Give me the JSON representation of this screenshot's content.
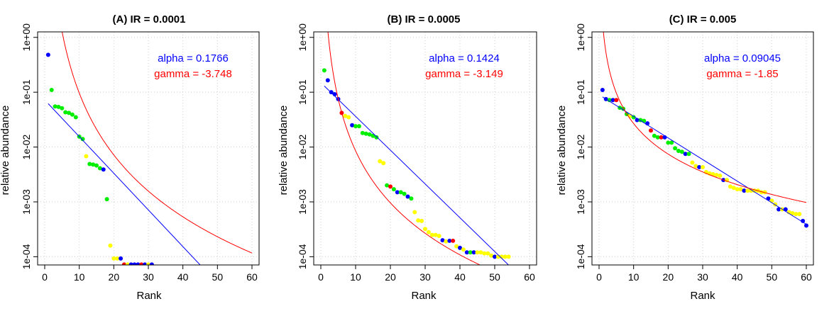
{
  "colors": {
    "green": "#00ee00",
    "blue": "#0000ff",
    "red": "#ff0000",
    "yellow": "#ffff00",
    "fit_blue": "#0000ff",
    "fit_red": "#ff0000",
    "grid": "#cfcfcf"
  },
  "chart_data": [
    {
      "type": "scatter",
      "title": "(A) IR = 0.0001",
      "xlabel": "Rank",
      "ylabel": "relative abundance",
      "xlim": [
        0,
        60
      ],
      "ylim_log10": [
        -4.15,
        0.1
      ],
      "x_ticks": [
        0,
        10,
        20,
        30,
        40,
        50,
        60
      ],
      "y_ticks": [
        {
          "value": 1,
          "label": "1e+00"
        },
        {
          "value": 0.1,
          "label": "1e-01"
        },
        {
          "value": 0.01,
          "label": "1e-02"
        },
        {
          "value": 0.001,
          "label": "1e-03"
        },
        {
          "value": 0.0001,
          "label": "1e-04"
        }
      ],
      "grid": true,
      "annotations": [
        {
          "text": "alpha = 0.1766",
          "color": "blue"
        },
        {
          "text": "gamma = -3.748",
          "color": "red"
        }
      ],
      "fits": [
        {
          "kind": "loglinear",
          "color": "fit_blue",
          "points": [
            [
              1,
              0.062
            ],
            [
              45,
              7.08e-05
            ]
          ]
        },
        {
          "kind": "powerlaw",
          "color": "fit_red",
          "c": 540,
          "gamma": -3.748,
          "x_from": 1,
          "x_to": 60
        }
      ],
      "points": [
        {
          "x": 1,
          "y": 0.48,
          "c": "blue"
        },
        {
          "x": 2,
          "y": 0.11,
          "c": "green"
        },
        {
          "x": 3,
          "y": 0.055,
          "c": "green"
        },
        {
          "x": 4,
          "y": 0.054,
          "c": "green"
        },
        {
          "x": 5,
          "y": 0.051,
          "c": "green"
        },
        {
          "x": 6,
          "y": 0.043,
          "c": "green"
        },
        {
          "x": 7,
          "y": 0.042,
          "c": "green"
        },
        {
          "x": 8,
          "y": 0.039,
          "c": "green"
        },
        {
          "x": 9,
          "y": 0.035,
          "c": "green"
        },
        {
          "x": 10,
          "y": 0.0155,
          "c": "green"
        },
        {
          "x": 11,
          "y": 0.014,
          "c": "green"
        },
        {
          "x": 12,
          "y": 0.0068,
          "c": "yellow"
        },
        {
          "x": 13,
          "y": 0.0049,
          "c": "green"
        },
        {
          "x": 14,
          "y": 0.0048,
          "c": "green"
        },
        {
          "x": 15,
          "y": 0.0046,
          "c": "green"
        },
        {
          "x": 16,
          "y": 0.0041,
          "c": "green"
        },
        {
          "x": 17,
          "y": 0.0039,
          "c": "blue"
        },
        {
          "x": 18,
          "y": 0.00112,
          "c": "green"
        },
        {
          "x": 19,
          "y": 0.00016,
          "c": "yellow"
        },
        {
          "x": 20,
          "y": 9.3e-05,
          "c": "yellow"
        },
        {
          "x": 21,
          "y": 9.3e-05,
          "c": "yellow"
        },
        {
          "x": 22,
          "y": 9.3e-05,
          "c": "blue"
        },
        {
          "x": 23,
          "y": 7.2e-05,
          "c": "red"
        },
        {
          "x": 24,
          "y": 7.2e-05,
          "c": "yellow"
        },
        {
          "x": 25,
          "y": 7.2e-05,
          "c": "blue"
        },
        {
          "x": 26,
          "y": 7.2e-05,
          "c": "blue"
        },
        {
          "x": 27,
          "y": 7.2e-05,
          "c": "blue"
        },
        {
          "x": 28,
          "y": 7.2e-05,
          "c": "red"
        },
        {
          "x": 29,
          "y": 7.2e-05,
          "c": "blue"
        },
        {
          "x": 30,
          "y": 7.2e-05,
          "c": "yellow"
        },
        {
          "x": 31,
          "y": 7.2e-05,
          "c": "blue"
        }
      ]
    },
    {
      "type": "scatter",
      "title": "(B) IR = 0.0005",
      "xlabel": "Rank",
      "ylabel": "relative abundance",
      "xlim": [
        0,
        60
      ],
      "ylim_log10": [
        -4.15,
        0.1
      ],
      "x_ticks": [
        0,
        10,
        20,
        30,
        40,
        50,
        60
      ],
      "y_ticks": [
        {
          "value": 1,
          "label": "1e+00"
        },
        {
          "value": 0.1,
          "label": "1e-01"
        },
        {
          "value": 0.01,
          "label": "1e-02"
        },
        {
          "value": 0.001,
          "label": "1e-03"
        },
        {
          "value": 0.0001,
          "label": "1e-04"
        }
      ],
      "grid": true,
      "annotations": [
        {
          "text": "alpha = 0.1424",
          "color": "blue"
        },
        {
          "text": "gamma = -3.149",
          "color": "red"
        }
      ],
      "fits": [
        {
          "kind": "loglinear",
          "color": "fit_blue",
          "points": [
            [
              1,
              0.13
            ],
            [
              57,
              4.6e-05
            ]
          ]
        },
        {
          "kind": "powerlaw",
          "color": "fit_red",
          "c": 12,
          "gamma": -3.149,
          "x_from": 1,
          "x_to": 60
        }
      ],
      "points": [
        {
          "x": 1,
          "y": 0.25,
          "c": "green"
        },
        {
          "x": 2,
          "y": 0.165,
          "c": "blue"
        },
        {
          "x": 3,
          "y": 0.1,
          "c": "blue"
        },
        {
          "x": 4,
          "y": 0.092,
          "c": "blue"
        },
        {
          "x": 5,
          "y": 0.075,
          "c": "blue"
        },
        {
          "x": 6,
          "y": 0.042,
          "c": "red"
        },
        {
          "x": 7,
          "y": 0.037,
          "c": "yellow"
        },
        {
          "x": 8,
          "y": 0.035,
          "c": "yellow"
        },
        {
          "x": 9,
          "y": 0.025,
          "c": "blue"
        },
        {
          "x": 10,
          "y": 0.024,
          "c": "green"
        },
        {
          "x": 11,
          "y": 0.024,
          "c": "green"
        },
        {
          "x": 12,
          "y": 0.018,
          "c": "green"
        },
        {
          "x": 13,
          "y": 0.0175,
          "c": "green"
        },
        {
          "x": 14,
          "y": 0.017,
          "c": "green"
        },
        {
          "x": 15,
          "y": 0.016,
          "c": "green"
        },
        {
          "x": 16,
          "y": 0.015,
          "c": "green"
        },
        {
          "x": 17,
          "y": 0.0055,
          "c": "yellow"
        },
        {
          "x": 18,
          "y": 0.0051,
          "c": "yellow"
        },
        {
          "x": 19,
          "y": 0.002,
          "c": "green"
        },
        {
          "x": 20,
          "y": 0.0019,
          "c": "red"
        },
        {
          "x": 21,
          "y": 0.0017,
          "c": "green"
        },
        {
          "x": 22,
          "y": 0.0015,
          "c": "blue"
        },
        {
          "x": 23,
          "y": 0.0015,
          "c": "green"
        },
        {
          "x": 24,
          "y": 0.0014,
          "c": "green"
        },
        {
          "x": 25,
          "y": 0.00125,
          "c": "blue"
        },
        {
          "x": 26,
          "y": 0.00115,
          "c": "green"
        },
        {
          "x": 27,
          "y": 0.00065,
          "c": "yellow"
        },
        {
          "x": 28,
          "y": 0.00046,
          "c": "yellow"
        },
        {
          "x": 29,
          "y": 0.00045,
          "c": "yellow"
        },
        {
          "x": 30,
          "y": 0.00032,
          "c": "yellow"
        },
        {
          "x": 31,
          "y": 0.00028,
          "c": "yellow"
        },
        {
          "x": 32,
          "y": 0.00025,
          "c": "yellow"
        },
        {
          "x": 33,
          "y": 0.00025,
          "c": "yellow"
        },
        {
          "x": 34,
          "y": 0.00024,
          "c": "yellow"
        },
        {
          "x": 35,
          "y": 0.0002,
          "c": "blue"
        },
        {
          "x": 36,
          "y": 0.00019,
          "c": "yellow"
        },
        {
          "x": 37,
          "y": 0.000195,
          "c": "blue"
        },
        {
          "x": 38,
          "y": 0.000195,
          "c": "red"
        },
        {
          "x": 39,
          "y": 0.000155,
          "c": "yellow"
        },
        {
          "x": 40,
          "y": 0.000145,
          "c": "blue"
        },
        {
          "x": 41,
          "y": 0.000135,
          "c": "yellow"
        },
        {
          "x": 42,
          "y": 0.00012,
          "c": "blue"
        },
        {
          "x": 43,
          "y": 0.00012,
          "c": "green"
        },
        {
          "x": 44,
          "y": 0.00012,
          "c": "blue"
        },
        {
          "x": 45,
          "y": 0.00012,
          "c": "yellow"
        },
        {
          "x": 46,
          "y": 0.00012,
          "c": "yellow"
        },
        {
          "x": 47,
          "y": 0.000115,
          "c": "yellow"
        },
        {
          "x": 48,
          "y": 0.000115,
          "c": "yellow"
        },
        {
          "x": 49,
          "y": 0.000105,
          "c": "yellow"
        },
        {
          "x": 50,
          "y": 0.0001,
          "c": "blue"
        },
        {
          "x": 51,
          "y": 0.0001,
          "c": "yellow"
        },
        {
          "x": 52,
          "y": 0.0001,
          "c": "yellow"
        },
        {
          "x": 53,
          "y": 0.0001,
          "c": "yellow"
        },
        {
          "x": 54,
          "y": 0.0001,
          "c": "yellow"
        }
      ]
    },
    {
      "type": "scatter",
      "title": "(C) IR = 0.005",
      "xlabel": "Rank",
      "ylabel": "relative abundance",
      "xlim": [
        0,
        60
      ],
      "ylim_log10": [
        -4.15,
        0.1
      ],
      "x_ticks": [
        0,
        10,
        20,
        30,
        40,
        50,
        60
      ],
      "y_ticks": [
        {
          "value": 1,
          "label": "1e+00"
        },
        {
          "value": 0.1,
          "label": "1e-01"
        },
        {
          "value": 0.01,
          "label": "1e-02"
        },
        {
          "value": 0.001,
          "label": "1e-03"
        },
        {
          "value": 0.0001,
          "label": "1e-04"
        }
      ],
      "grid": true,
      "annotations": [
        {
          "text": "alpha = 0.09045",
          "color": "blue"
        },
        {
          "text": "gamma = -1.85",
          "color": "red"
        }
      ],
      "fits": [
        {
          "kind": "loglinear",
          "color": "fit_blue",
          "points": [
            [
              1,
              0.082
            ],
            [
              60,
              0.00039
            ]
          ]
        },
        {
          "kind": "powerlaw",
          "color": "fit_red",
          "c": 1.9,
          "gamma": -1.85,
          "x_from": 1,
          "x_to": 60
        }
      ],
      "points": [
        {
          "x": 1,
          "y": 0.11,
          "c": "blue"
        },
        {
          "x": 2,
          "y": 0.075,
          "c": "blue"
        },
        {
          "x": 3,
          "y": 0.072,
          "c": "green"
        },
        {
          "x": 4,
          "y": 0.072,
          "c": "blue"
        },
        {
          "x": 5,
          "y": 0.072,
          "c": "red"
        },
        {
          "x": 6,
          "y": 0.052,
          "c": "green"
        },
        {
          "x": 7,
          "y": 0.05,
          "c": "green"
        },
        {
          "x": 8,
          "y": 0.04,
          "c": "green"
        },
        {
          "x": 9,
          "y": 0.037,
          "c": "yellow"
        },
        {
          "x": 10,
          "y": 0.035,
          "c": "green"
        },
        {
          "x": 11,
          "y": 0.031,
          "c": "blue"
        },
        {
          "x": 12,
          "y": 0.031,
          "c": "green"
        },
        {
          "x": 13,
          "y": 0.03,
          "c": "green"
        },
        {
          "x": 14,
          "y": 0.027,
          "c": "blue"
        },
        {
          "x": 15,
          "y": 0.02,
          "c": "red"
        },
        {
          "x": 16,
          "y": 0.016,
          "c": "green"
        },
        {
          "x": 17,
          "y": 0.015,
          "c": "green"
        },
        {
          "x": 18,
          "y": 0.015,
          "c": "red"
        },
        {
          "x": 19,
          "y": 0.015,
          "c": "blue"
        },
        {
          "x": 20,
          "y": 0.012,
          "c": "green"
        },
        {
          "x": 21,
          "y": 0.012,
          "c": "green"
        },
        {
          "x": 22,
          "y": 0.0095,
          "c": "green"
        },
        {
          "x": 23,
          "y": 0.0085,
          "c": "green"
        },
        {
          "x": 24,
          "y": 0.0082,
          "c": "green"
        },
        {
          "x": 25,
          "y": 0.0075,
          "c": "blue"
        },
        {
          "x": 26,
          "y": 0.0075,
          "c": "green"
        },
        {
          "x": 27,
          "y": 0.0052,
          "c": "yellow"
        },
        {
          "x": 28,
          "y": 0.0045,
          "c": "yellow"
        },
        {
          "x": 29,
          "y": 0.0043,
          "c": "blue"
        },
        {
          "x": 30,
          "y": 0.0043,
          "c": "yellow"
        },
        {
          "x": 31,
          "y": 0.0035,
          "c": "yellow"
        },
        {
          "x": 32,
          "y": 0.0033,
          "c": "yellow"
        },
        {
          "x": 33,
          "y": 0.0032,
          "c": "yellow"
        },
        {
          "x": 34,
          "y": 0.0031,
          "c": "yellow"
        },
        {
          "x": 35,
          "y": 0.003,
          "c": "yellow"
        },
        {
          "x": 36,
          "y": 0.0025,
          "c": "blue"
        },
        {
          "x": 37,
          "y": 0.0025,
          "c": "yellow"
        },
        {
          "x": 38,
          "y": 0.0019,
          "c": "yellow"
        },
        {
          "x": 39,
          "y": 0.0018,
          "c": "yellow"
        },
        {
          "x": 40,
          "y": 0.0017,
          "c": "yellow"
        },
        {
          "x": 41,
          "y": 0.0017,
          "c": "yellow"
        },
        {
          "x": 42,
          "y": 0.0016,
          "c": "blue"
        },
        {
          "x": 43,
          "y": 0.0016,
          "c": "yellow"
        },
        {
          "x": 44,
          "y": 0.0016,
          "c": "yellow"
        },
        {
          "x": 45,
          "y": 0.0016,
          "c": "yellow"
        },
        {
          "x": 46,
          "y": 0.0016,
          "c": "yellow"
        },
        {
          "x": 47,
          "y": 0.0015,
          "c": "yellow"
        },
        {
          "x": 48,
          "y": 0.0015,
          "c": "yellow"
        },
        {
          "x": 49,
          "y": 0.00115,
          "c": "blue"
        },
        {
          "x": 50,
          "y": 0.00105,
          "c": "yellow"
        },
        {
          "x": 51,
          "y": 0.0009,
          "c": "yellow"
        },
        {
          "x": 52,
          "y": 0.00073,
          "c": "blue"
        },
        {
          "x": 53,
          "y": 0.00073,
          "c": "yellow"
        },
        {
          "x": 54,
          "y": 0.00073,
          "c": "blue"
        },
        {
          "x": 55,
          "y": 0.00065,
          "c": "yellow"
        },
        {
          "x": 56,
          "y": 0.00062,
          "c": "yellow"
        },
        {
          "x": 57,
          "y": 0.0006,
          "c": "yellow"
        },
        {
          "x": 58,
          "y": 0.0006,
          "c": "yellow"
        },
        {
          "x": 59,
          "y": 0.00045,
          "c": "blue"
        },
        {
          "x": 60,
          "y": 0.00037,
          "c": "blue"
        }
      ]
    }
  ]
}
